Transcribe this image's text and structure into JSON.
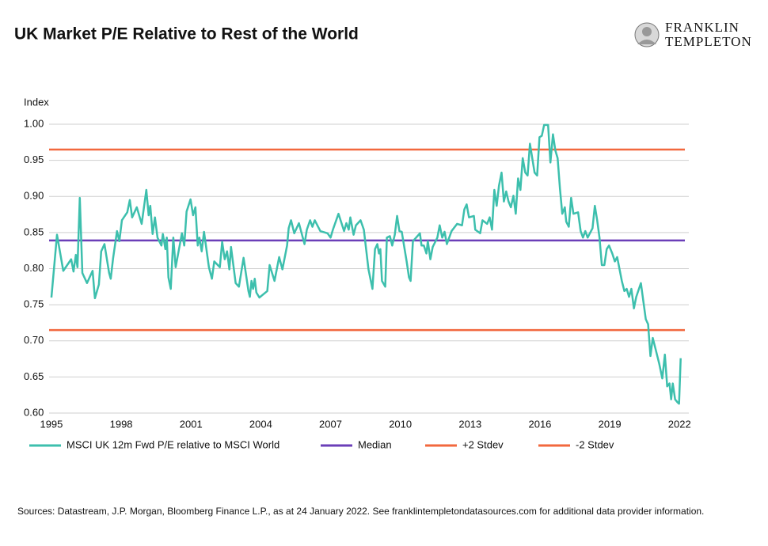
{
  "chart_data": {
    "type": "line",
    "title": "UK Market P/E Relative to Rest of the World",
    "logo": [
      "FRANKLIN",
      "TEMPLETON"
    ],
    "ylabel": "Index",
    "source": "Sources: Datastream, J.P. Morgan, Bloomberg Finance L.P., as at 24 January 2022. See franklintempletondatasources.com for additional data provider information.",
    "xlim": [
      1994.9,
      2022.4
    ],
    "xticks": [
      1995,
      1998,
      2001,
      2004,
      2007,
      2010,
      2013,
      2016,
      2019,
      2022
    ],
    "ylim": [
      0.6,
      1.0
    ],
    "yticks": [
      {
        "value": 0.6,
        "label": "0.60"
      },
      {
        "value": 0.65,
        "label": "0.65"
      },
      {
        "value": 0.7,
        "label": "0.70"
      },
      {
        "value": 0.75,
        "label": "0.75"
      },
      {
        "value": 0.8,
        "label": "0.80"
      },
      {
        "value": 0.85,
        "label": "0.85"
      },
      {
        "value": 0.9,
        "label": "0.90"
      },
      {
        "value": 0.95,
        "label": "0.95"
      },
      {
        "value": 1.0,
        "label": "1.00"
      }
    ],
    "grid": true,
    "series": [
      {
        "name": "MSCI UK 12m Fwd P/E relative to MSCI World",
        "color": "#3dbfad",
        "x": [
          1995.0,
          1995.24,
          1995.51,
          1995.85,
          1995.95,
          1996.05,
          1996.12,
          1996.22,
          1996.33,
          1996.53,
          1996.77,
          1996.87,
          1997.04,
          1997.14,
          1997.28,
          1997.48,
          1997.55,
          1997.65,
          1997.82,
          1997.92,
          1998.03,
          1998.26,
          1998.37,
          1998.47,
          1998.67,
          1998.88,
          1999.08,
          1999.18,
          1999.25,
          1999.35,
          1999.45,
          1999.56,
          1999.73,
          1999.79,
          1999.9,
          1999.96,
          2000.03,
          2000.13,
          2000.24,
          2000.34,
          2000.61,
          2000.71,
          2000.81,
          2000.98,
          2001.09,
          2001.19,
          2001.29,
          2001.36,
          2001.46,
          2001.56,
          2001.77,
          2001.9,
          2002.0,
          2002.24,
          2002.34,
          2002.45,
          2002.55,
          2002.65,
          2002.72,
          2002.92,
          2003.06,
          2003.26,
          2003.47,
          2003.53,
          2003.6,
          2003.67,
          2003.74,
          2003.81,
          2003.94,
          2004.28,
          2004.38,
          2004.59,
          2004.79,
          2004.93,
          2005.13,
          2005.2,
          2005.3,
          2005.44,
          2005.64,
          2005.88,
          2005.98,
          2006.12,
          2006.22,
          2006.32,
          2006.56,
          2006.87,
          2007.0,
          2007.1,
          2007.34,
          2007.58,
          2007.68,
          2007.78,
          2007.85,
          2007.99,
          2008.09,
          2008.29,
          2008.43,
          2008.63,
          2008.8,
          2008.91,
          2009.01,
          2009.08,
          2009.14,
          2009.21,
          2009.35,
          2009.42,
          2009.55,
          2009.65,
          2009.76,
          2009.86,
          2009.96,
          2010.06,
          2010.27,
          2010.37,
          2010.44,
          2010.54,
          2010.84,
          2010.91,
          2011.01,
          2011.12,
          2011.18,
          2011.29,
          2011.39,
          2011.59,
          2011.69,
          2011.8,
          2011.9,
          2012.0,
          2012.2,
          2012.44,
          2012.65,
          2012.75,
          2012.85,
          2012.95,
          2013.16,
          2013.22,
          2013.43,
          2013.53,
          2013.73,
          2013.84,
          2013.94,
          2014.04,
          2014.14,
          2014.24,
          2014.35,
          2014.45,
          2014.55,
          2014.65,
          2014.75,
          2014.86,
          2014.96,
          2015.06,
          2015.16,
          2015.26,
          2015.37,
          2015.47,
          2015.57,
          2015.77,
          2015.88,
          2015.98,
          2016.08,
          2016.18,
          2016.35,
          2016.45,
          2016.56,
          2016.66,
          2016.76,
          2016.86,
          2016.96,
          2017.07,
          2017.13,
          2017.24,
          2017.34,
          2017.44,
          2017.64,
          2017.75,
          2017.85,
          2017.95,
          2018.05,
          2018.26,
          2018.36,
          2018.46,
          2018.56,
          2018.66,
          2018.77,
          2018.87,
          2018.97,
          2019.11,
          2019.22,
          2019.32,
          2019.52,
          2019.63,
          2019.73,
          2019.83,
          2019.93,
          2020.04,
          2020.14,
          2020.34,
          2020.44,
          2020.55,
          2020.65,
          2020.75,
          2020.85,
          2020.96,
          2021.13,
          2021.26,
          2021.37,
          2021.47,
          2021.57,
          2021.64,
          2021.71,
          2021.81,
          2021.91,
          2021.98,
          2022.05
        ],
        "values": [
          0.76,
          0.847,
          0.797,
          0.813,
          0.796,
          0.819,
          0.802,
          0.898,
          0.794,
          0.78,
          0.797,
          0.759,
          0.778,
          0.824,
          0.834,
          0.794,
          0.786,
          0.814,
          0.852,
          0.838,
          0.867,
          0.878,
          0.895,
          0.871,
          0.885,
          0.862,
          0.909,
          0.874,
          0.887,
          0.848,
          0.871,
          0.843,
          0.832,
          0.848,
          0.827,
          0.843,
          0.788,
          0.772,
          0.843,
          0.802,
          0.849,
          0.832,
          0.879,
          0.896,
          0.874,
          0.885,
          0.832,
          0.843,
          0.824,
          0.851,
          0.802,
          0.786,
          0.81,
          0.802,
          0.837,
          0.813,
          0.824,
          0.799,
          0.83,
          0.78,
          0.775,
          0.815,
          0.769,
          0.761,
          0.783,
          0.772,
          0.786,
          0.767,
          0.76,
          0.769,
          0.805,
          0.783,
          0.816,
          0.799,
          0.832,
          0.856,
          0.867,
          0.849,
          0.863,
          0.834,
          0.854,
          0.867,
          0.858,
          0.867,
          0.852,
          0.849,
          0.843,
          0.854,
          0.876,
          0.852,
          0.863,
          0.854,
          0.871,
          0.847,
          0.86,
          0.867,
          0.854,
          0.799,
          0.772,
          0.827,
          0.834,
          0.821,
          0.827,
          0.783,
          0.775,
          0.843,
          0.845,
          0.832,
          0.847,
          0.873,
          0.852,
          0.851,
          0.81,
          0.788,
          0.783,
          0.838,
          0.849,
          0.832,
          0.832,
          0.821,
          0.838,
          0.813,
          0.83,
          0.843,
          0.86,
          0.843,
          0.851,
          0.834,
          0.852,
          0.862,
          0.86,
          0.882,
          0.889,
          0.871,
          0.873,
          0.854,
          0.849,
          0.867,
          0.862,
          0.871,
          0.854,
          0.909,
          0.887,
          0.915,
          0.933,
          0.893,
          0.907,
          0.893,
          0.885,
          0.901,
          0.876,
          0.925,
          0.909,
          0.953,
          0.933,
          0.929,
          0.973,
          0.933,
          0.929,
          0.982,
          0.984,
          0.999,
          0.999,
          0.947,
          0.986,
          0.964,
          0.953,
          0.911,
          0.876,
          0.885,
          0.865,
          0.858,
          0.898,
          0.876,
          0.878,
          0.852,
          0.843,
          0.852,
          0.843,
          0.856,
          0.887,
          0.867,
          0.843,
          0.805,
          0.805,
          0.827,
          0.832,
          0.821,
          0.81,
          0.816,
          0.783,
          0.769,
          0.772,
          0.761,
          0.772,
          0.745,
          0.761,
          0.78,
          0.756,
          0.73,
          0.723,
          0.679,
          0.704,
          0.69,
          0.668,
          0.648,
          0.681,
          0.637,
          0.641,
          0.619,
          0.641,
          0.619,
          0.615,
          0.613,
          0.676
        ]
      }
    ],
    "reference_lines": [
      {
        "name": "Median",
        "color": "#6b3fb8",
        "value": 0.839
      },
      {
        "name": "+2 Stdev",
        "color": "#f2683e",
        "value": 0.965
      },
      {
        "name": "-2 Stdev",
        "color": "#f2683e",
        "value": 0.715
      }
    ]
  }
}
